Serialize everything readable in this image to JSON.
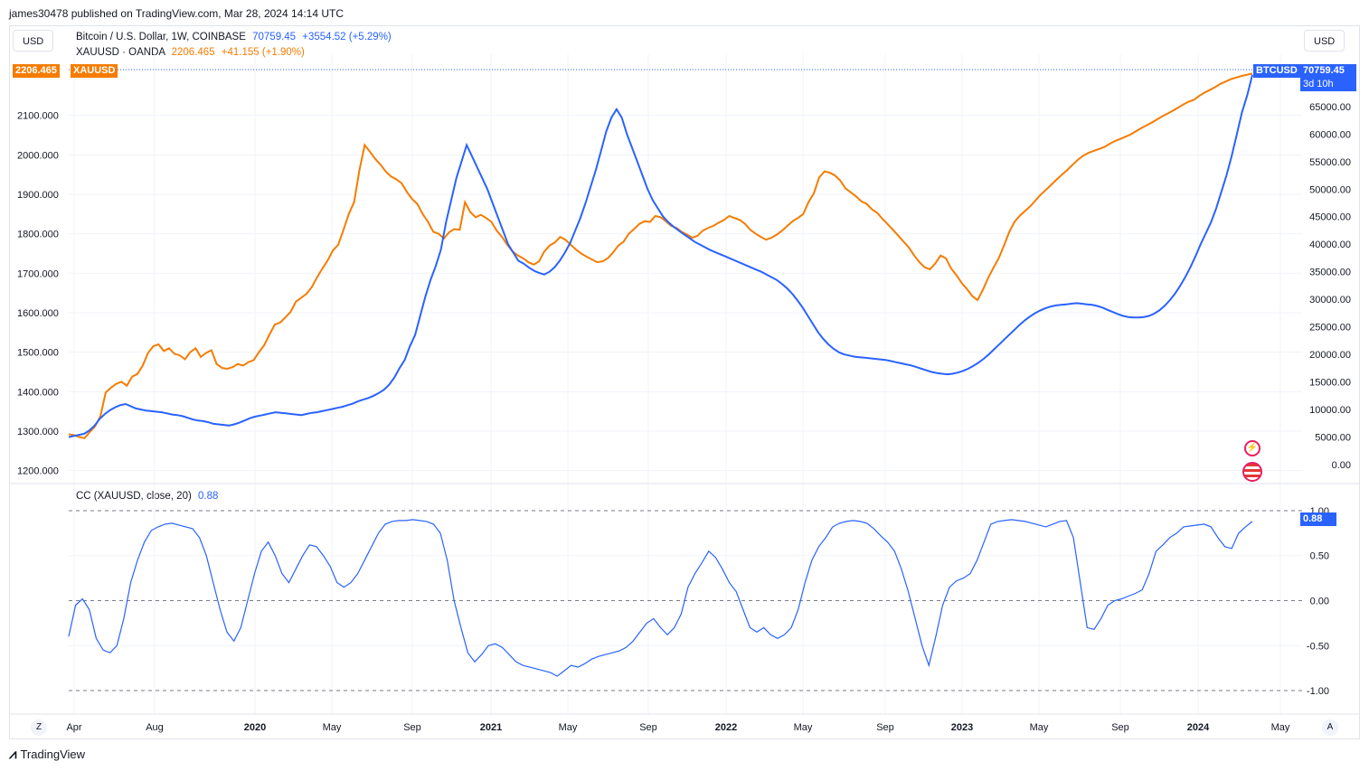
{
  "header": {
    "published": "james30478 published on TradingView.com, Mar 28, 2024 14:14 UTC"
  },
  "toolbar": {
    "left_currency": "USD",
    "right_currency": "USD"
  },
  "legend": {
    "btc": {
      "name": "Bitcoin / U.S. Dollar, 1W, COINBASE",
      "value": "70759.45",
      "change": "+3554.52 (+5.29%)"
    },
    "xau": {
      "name": "XAUUSD · OANDA",
      "value": "2206.465",
      "change": "+41.155 (+1.90%)"
    },
    "cc": {
      "name": "CC (XAUUSD, close, 20)",
      "value": "0.88"
    }
  },
  "tags": {
    "xau_price": "2206.465",
    "xau_symbol": "XAUUSD",
    "btc_symbol": "BTCUSD",
    "btc_price": "70759.45",
    "btc_countdown": "3d 10h",
    "cc_value": "0.88"
  },
  "brand": {
    "name": "TradingView"
  },
  "corner": {
    "left": "Z",
    "right": "A"
  },
  "colors": {
    "btc": "#2962ff",
    "xau": "#f57c00",
    "cc": "#2962ff",
    "grid": "#f0f3fa"
  },
  "chart_data": [
    {
      "type": "line",
      "title": "",
      "x_ticks": [
        "Apr",
        "Aug",
        "2020",
        "May",
        "Sep",
        "2021",
        "May",
        "Sep",
        "2022",
        "May",
        "Sep",
        "2023",
        "May",
        "Sep",
        "2024",
        "May"
      ],
      "left_axis": {
        "ticks": [
          "2100.000",
          "2000.000",
          "1900.000",
          "1800.000",
          "1700.000",
          "1600.000",
          "1500.000",
          "1400.000",
          "1300.000",
          "1200.000"
        ],
        "range": [
          1190,
          2216
        ]
      },
      "right_axis": {
        "ticks": [
          "65000.00",
          "60000.00",
          "55000.00",
          "50000.00",
          "45000.00",
          "40000.00",
          "35000.00",
          "30000.00",
          "25000.00",
          "20000.00",
          "15000.00",
          "10000.00",
          "5000.00",
          "0.00"
        ],
        "range": [
          -1800,
          71700
        ]
      },
      "series": [
        {
          "name": "XAUUSD",
          "axis": "left",
          "values": [
            1292,
            1290,
            1285,
            1282,
            1298,
            1312,
            1338,
            1398,
            1410,
            1420,
            1425,
            1415,
            1438,
            1445,
            1466,
            1498,
            1515,
            1520,
            1503,
            1510,
            1496,
            1492,
            1482,
            1500,
            1510,
            1488,
            1498,
            1505,
            1470,
            1460,
            1458,
            1462,
            1470,
            1466,
            1475,
            1480,
            1500,
            1518,
            1545,
            1570,
            1575,
            1588,
            1602,
            1628,
            1638,
            1648,
            1665,
            1690,
            1712,
            1732,
            1758,
            1772,
            1810,
            1850,
            1880,
            1960,
            2025,
            2008,
            1990,
            1975,
            1958,
            1945,
            1938,
            1928,
            1906,
            1888,
            1875,
            1850,
            1830,
            1805,
            1800,
            1788,
            1804,
            1812,
            1810,
            1880,
            1855,
            1842,
            1848,
            1840,
            1830,
            1808,
            1792,
            1772,
            1755,
            1745,
            1738,
            1728,
            1722,
            1730,
            1755,
            1770,
            1778,
            1792,
            1785,
            1772,
            1760,
            1750,
            1742,
            1735,
            1728,
            1730,
            1738,
            1752,
            1770,
            1780,
            1800,
            1812,
            1825,
            1832,
            1830,
            1845,
            1842,
            1832,
            1820,
            1815,
            1805,
            1798,
            1790,
            1795,
            1808,
            1815,
            1820,
            1828,
            1835,
            1845,
            1840,
            1835,
            1825,
            1810,
            1800,
            1792,
            1785,
            1790,
            1798,
            1808,
            1820,
            1832,
            1840,
            1850,
            1880,
            1902,
            1942,
            1958,
            1955,
            1948,
            1935,
            1915,
            1905,
            1895,
            1882,
            1876,
            1862,
            1853,
            1838,
            1824,
            1810,
            1795,
            1780,
            1765,
            1745,
            1728,
            1715,
            1710,
            1725,
            1745,
            1738,
            1712,
            1695,
            1675,
            1660,
            1642,
            1632,
            1658,
            1688,
            1714,
            1738,
            1770,
            1805,
            1830,
            1846,
            1858,
            1870,
            1885,
            1900,
            1912,
            1925,
            1938,
            1950,
            1962,
            1975,
            1988,
            1998,
            2005,
            2010,
            2015,
            2020,
            2028,
            2035,
            2040,
            2046,
            2052,
            2060,
            2068,
            2075,
            2082,
            2090,
            2098,
            2105,
            2112,
            2120,
            2128,
            2135,
            2140,
            2150,
            2158,
            2165,
            2172,
            2180,
            2186,
            2192,
            2196,
            2200,
            2203,
            2206
          ]
        },
        {
          "name": "BTCUSD",
          "axis": "right",
          "values": [
            5000,
            5200,
            5400,
            5600,
            6200,
            7100,
            8300,
            9200,
            9900,
            10400,
            10800,
            11000,
            10600,
            10200,
            10000,
            9800,
            9700,
            9600,
            9500,
            9300,
            9100,
            9000,
            8800,
            8500,
            8200,
            8000,
            7900,
            7700,
            7400,
            7300,
            7200,
            7100,
            7300,
            7600,
            8000,
            8400,
            8700,
            8900,
            9100,
            9300,
            9500,
            9400,
            9300,
            9200,
            9100,
            9000,
            9200,
            9400,
            9500,
            9700,
            9900,
            10100,
            10300,
            10500,
            10800,
            11100,
            11500,
            11800,
            12100,
            12500,
            13000,
            13600,
            14500,
            15800,
            17500,
            19000,
            21500,
            23500,
            27000,
            30500,
            33500,
            36000,
            39000,
            44000,
            48000,
            52000,
            55000,
            58000,
            56000,
            54000,
            52000,
            50000,
            47500,
            45000,
            42500,
            40000,
            38500,
            37000,
            36500,
            35800,
            35200,
            34800,
            34500,
            35000,
            35800,
            37000,
            38500,
            40200,
            42500,
            44800,
            47500,
            50500,
            53500,
            57000,
            60500,
            63000,
            64500,
            63000,
            60000,
            57500,
            55000,
            52500,
            50000,
            48000,
            46500,
            45000,
            44000,
            43200,
            42500,
            41800,
            41200,
            40500,
            40000,
            39500,
            39000,
            38600,
            38200,
            37800,
            37400,
            37000,
            36600,
            36200,
            35800,
            35400,
            35000,
            34500,
            34000,
            33500,
            32800,
            32000,
            31000,
            29800,
            28500,
            27000,
            25500,
            24000,
            22800,
            21800,
            21000,
            20400,
            20000,
            19800,
            19600,
            19500,
            19400,
            19300,
            19200,
            19100,
            19000,
            18800,
            18600,
            18400,
            18200,
            18000,
            17700,
            17400,
            17100,
            16800,
            16600,
            16500,
            16400,
            16500,
            16700,
            17000,
            17400,
            17900,
            18500,
            19200,
            20000,
            20900,
            21800,
            22700,
            23600,
            24500,
            25400,
            26200,
            26900,
            27500,
            28000,
            28400,
            28700,
            28900,
            29000,
            29100,
            29200,
            29300,
            29200,
            29100,
            29000,
            28800,
            28500,
            28100,
            27700,
            27300,
            27000,
            26800,
            26700,
            26700,
            26800,
            27000,
            27400,
            28000,
            28800,
            29800,
            31000,
            32400,
            34000,
            35800,
            37800,
            40000,
            42000,
            44000,
            46500,
            49500,
            52500,
            56000,
            60000,
            64000,
            67000,
            70759
          ]
        }
      ]
    },
    {
      "type": "line",
      "title": "CC (XAUUSD, close, 20)",
      "y_ticks": [
        "1.00",
        "0.50",
        "0.00",
        "-0.50",
        "-1.00"
      ],
      "y_range": [
        -1.04,
        1.04
      ],
      "series": [
        {
          "name": "CC",
          "values": [
            -0.4,
            -0.05,
            0.02,
            -0.1,
            -0.42,
            -0.55,
            -0.58,
            -0.5,
            -0.2,
            0.2,
            0.45,
            0.65,
            0.78,
            0.82,
            0.85,
            0.86,
            0.84,
            0.82,
            0.8,
            0.7,
            0.5,
            0.2,
            -0.1,
            -0.35,
            -0.45,
            -0.3,
            0.0,
            0.3,
            0.55,
            0.65,
            0.5,
            0.3,
            0.2,
            0.35,
            0.5,
            0.62,
            0.6,
            0.5,
            0.38,
            0.2,
            0.15,
            0.2,
            0.3,
            0.45,
            0.6,
            0.75,
            0.85,
            0.88,
            0.89,
            0.89,
            0.9,
            0.89,
            0.88,
            0.85,
            0.75,
            0.45,
            0.0,
            -0.3,
            -0.58,
            -0.68,
            -0.6,
            -0.5,
            -0.48,
            -0.52,
            -0.6,
            -0.68,
            -0.72,
            -0.74,
            -0.76,
            -0.78,
            -0.8,
            -0.84,
            -0.78,
            -0.72,
            -0.74,
            -0.7,
            -0.65,
            -0.62,
            -0.6,
            -0.58,
            -0.56,
            -0.52,
            -0.45,
            -0.35,
            -0.25,
            -0.2,
            -0.3,
            -0.38,
            -0.3,
            -0.15,
            0.15,
            0.3,
            0.42,
            0.55,
            0.48,
            0.35,
            0.2,
            0.1,
            -0.1,
            -0.3,
            -0.35,
            -0.3,
            -0.38,
            -0.42,
            -0.38,
            -0.3,
            -0.1,
            0.2,
            0.45,
            0.6,
            0.7,
            0.82,
            0.86,
            0.88,
            0.89,
            0.88,
            0.86,
            0.8,
            0.72,
            0.65,
            0.55,
            0.35,
            0.1,
            -0.2,
            -0.5,
            -0.72,
            -0.4,
            -0.05,
            0.15,
            0.22,
            0.25,
            0.3,
            0.45,
            0.65,
            0.85,
            0.88,
            0.89,
            0.9,
            0.89,
            0.88,
            0.86,
            0.84,
            0.82,
            0.85,
            0.88,
            0.89,
            0.7,
            0.2,
            -0.3,
            -0.32,
            -0.2,
            -0.05,
            0.0,
            0.02,
            0.05,
            0.08,
            0.12,
            0.3,
            0.55,
            0.62,
            0.7,
            0.75,
            0.82,
            0.83,
            0.84,
            0.85,
            0.82,
            0.7,
            0.6,
            0.58,
            0.75,
            0.82,
            0.88
          ]
        }
      ]
    }
  ]
}
